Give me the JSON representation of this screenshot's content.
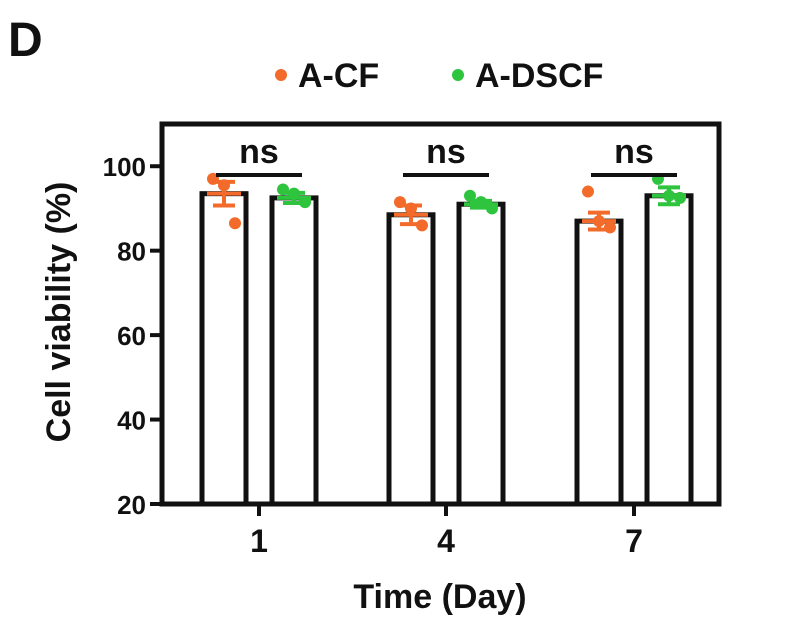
{
  "panel_label": "D",
  "colors": {
    "A-CF": "#f26b2a",
    "A-DSCF": "#2ec43e",
    "axis": "#111111",
    "bar_fill": "#ffffff"
  },
  "chart_data": {
    "type": "bar",
    "title": "",
    "xlabel": "Time (Day)",
    "ylabel": "Cell viability (%)",
    "ylim": [
      20,
      110
    ],
    "yticks": [
      20,
      40,
      60,
      80,
      100
    ],
    "categories": [
      "1",
      "4",
      "7"
    ],
    "legend_position": "top",
    "series": [
      {
        "name": "A-CF",
        "values": [
          93.5,
          88.5,
          87
        ],
        "sem": [
          2.8,
          2.2,
          2.0
        ],
        "points": [
          [
            97,
            95.5,
            86.5
          ],
          [
            91.5,
            90,
            86
          ],
          [
            94,
            87,
            85.5
          ]
        ]
      },
      {
        "name": "A-DSCF",
        "values": [
          92.5,
          91,
          93
        ],
        "sem": [
          1.2,
          0.8,
          2.0
        ],
        "points": [
          [
            94.5,
            93.5,
            91.5
          ],
          [
            93,
            91.5,
            90
          ],
          [
            97,
            93,
            92.5
          ]
        ]
      }
    ],
    "annotations": [
      {
        "category": "1",
        "text": "ns"
      },
      {
        "category": "4",
        "text": "ns"
      },
      {
        "category": "7",
        "text": "ns"
      }
    ],
    "grid": false
  }
}
